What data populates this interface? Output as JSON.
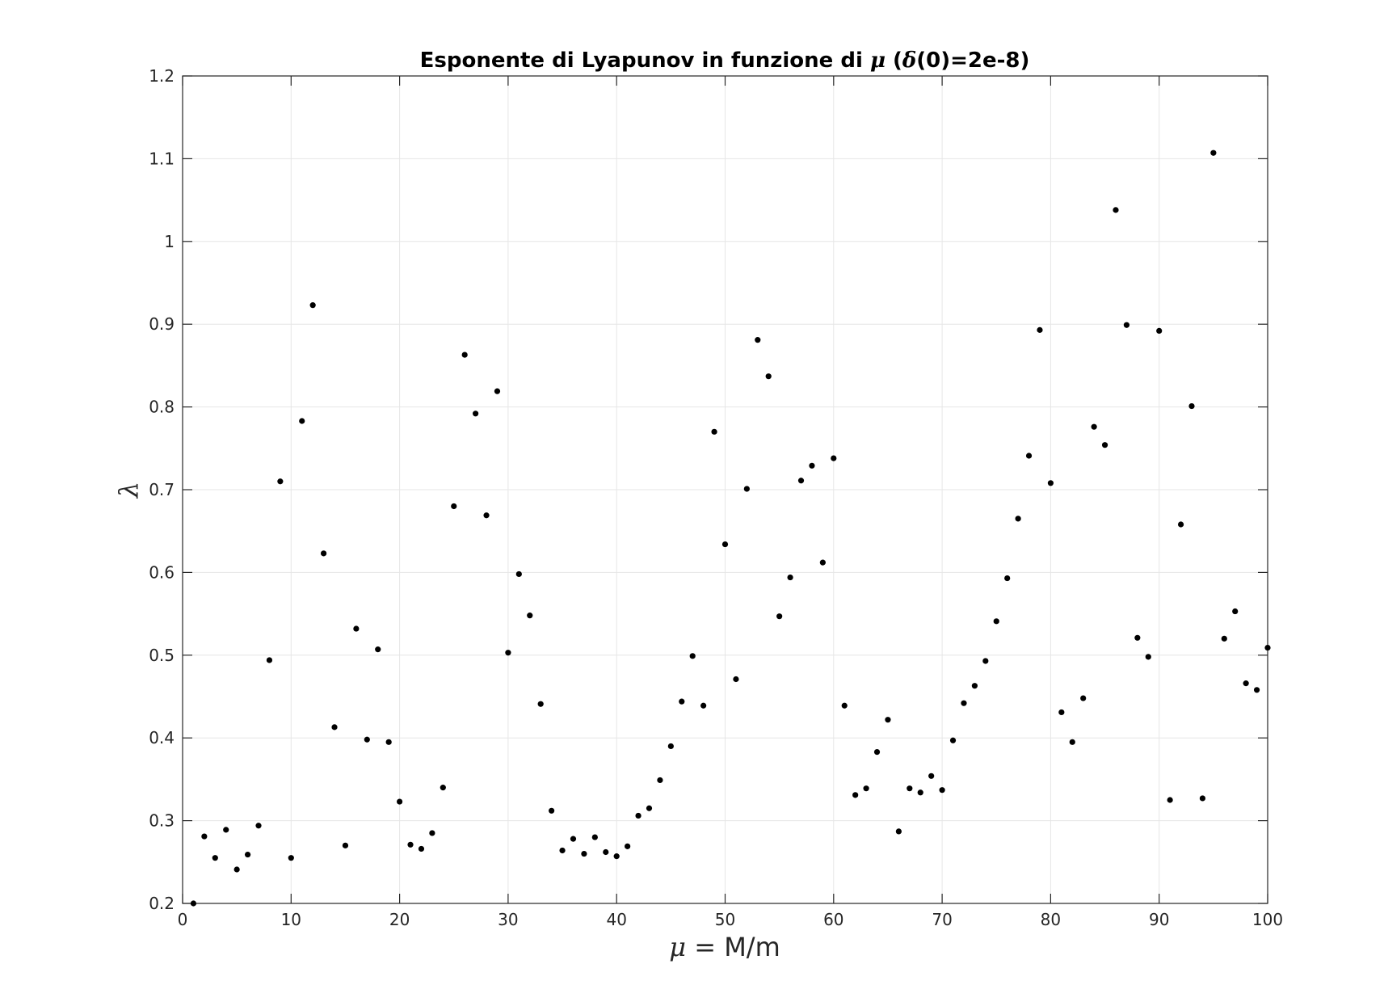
{
  "chart_data": {
    "type": "scatter",
    "title": {
      "before": "Esponente di Lyapunov in funzione di ",
      "symbol": "μ",
      "middle": " (",
      "symbol2": "δ",
      "after": "(0)=2e-8)"
    },
    "xlabel": {
      "symbol": "μ",
      "text": " = M/m"
    },
    "ylabel": {
      "symbol": "λ"
    },
    "xlim": [
      0,
      100
    ],
    "ylim": [
      0.2,
      1.2
    ],
    "xticks": [
      0,
      10,
      20,
      30,
      40,
      50,
      60,
      70,
      80,
      90,
      100
    ],
    "xtick_labels": [
      "0",
      "10",
      "20",
      "30",
      "40",
      "50",
      "60",
      "70",
      "80",
      "90",
      "100"
    ],
    "yticks": [
      0.2,
      0.3,
      0.4,
      0.5,
      0.6,
      0.7,
      0.8,
      0.9,
      1.0,
      1.1,
      1.2
    ],
    "ytick_labels": [
      "0.2",
      "0.3",
      "0.4",
      "0.5",
      "0.6",
      "0.7",
      "0.8",
      "0.9",
      "1",
      "1.1",
      "1.2"
    ],
    "grid": true,
    "marker_color": "#000000",
    "grid_color": "#e6e6e6",
    "axis_color": "#262626",
    "x": [
      1,
      2,
      3,
      4,
      5,
      6,
      7,
      8,
      9,
      10,
      11,
      12,
      13,
      14,
      15,
      16,
      17,
      18,
      19,
      20,
      21,
      22,
      23,
      24,
      25,
      26,
      27,
      28,
      29,
      30,
      31,
      32,
      33,
      34,
      35,
      36,
      37,
      38,
      39,
      40,
      41,
      42,
      43,
      44,
      45,
      46,
      47,
      48,
      49,
      50,
      51,
      52,
      53,
      54,
      55,
      56,
      57,
      58,
      59,
      60,
      61,
      62,
      63,
      64,
      65,
      66,
      67,
      68,
      69,
      70,
      71,
      72,
      73,
      74,
      75,
      76,
      77,
      78,
      79,
      80,
      81,
      82,
      83,
      84,
      85,
      86,
      87,
      88,
      89,
      90,
      91,
      92,
      93,
      94,
      95,
      96,
      97,
      98,
      99,
      100
    ],
    "y": [
      0.2,
      0.281,
      0.255,
      0.289,
      0.241,
      0.259,
      0.294,
      0.494,
      0.71,
      0.255,
      0.783,
      0.923,
      0.623,
      0.413,
      0.27,
      0.532,
      0.398,
      0.507,
      0.395,
      0.323,
      0.271,
      0.266,
      0.285,
      0.34,
      0.68,
      0.863,
      0.792,
      0.669,
      0.819,
      0.503,
      0.598,
      0.548,
      0.441,
      0.312,
      0.264,
      0.278,
      0.26,
      0.28,
      0.262,
      0.257,
      0.269,
      0.306,
      0.315,
      0.349,
      0.39,
      0.444,
      0.499,
      0.439,
      0.77,
      0.634,
      0.471,
      0.701,
      0.881,
      0.837,
      0.547,
      0.594,
      0.711,
      0.729,
      0.612,
      0.738,
      0.439,
      0.331,
      0.339,
      0.383,
      0.422,
      0.287,
      0.339,
      0.334,
      0.354,
      0.337,
      0.397,
      0.442,
      0.463,
      0.493,
      0.541,
      0.593,
      0.665,
      0.741,
      0.893,
      0.708,
      0.431,
      0.395,
      0.448,
      0.776,
      0.754,
      1.038,
      0.899,
      0.521,
      0.498,
      0.892,
      0.325,
      0.658,
      0.801,
      0.327,
      1.107,
      0.52,
      0.553,
      0.466,
      0.458,
      0.509
    ]
  }
}
